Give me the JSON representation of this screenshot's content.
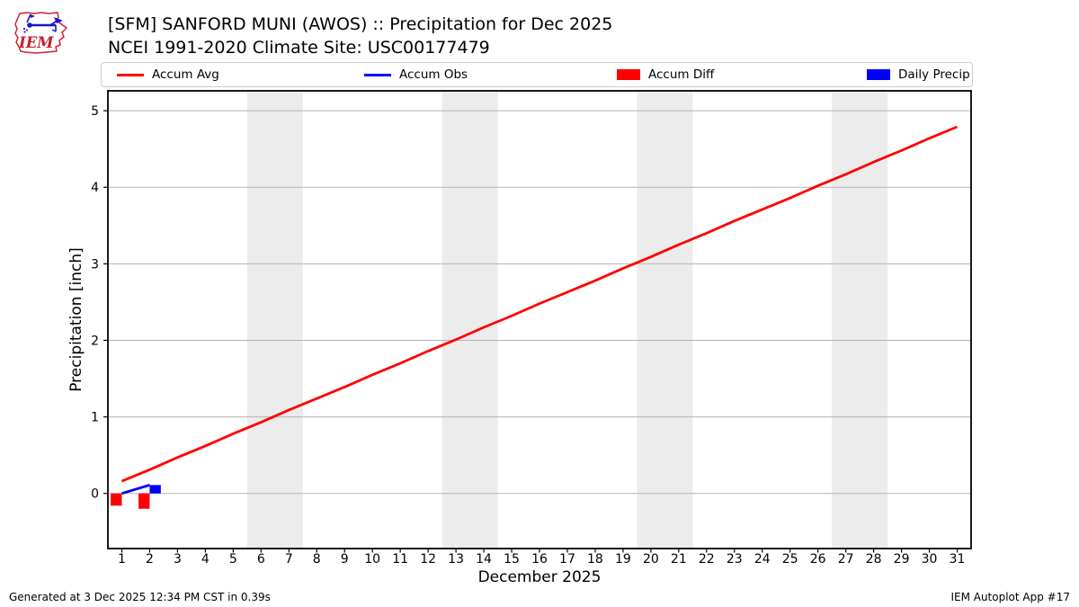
{
  "header": {
    "title": "[SFM] SANFORD MUNI (AWOS) :: Precipitation for Dec 2025",
    "subtitle": "NCEI 1991-2020 Climate Site: USC00177479"
  },
  "logo": {
    "text": "IEM"
  },
  "legend": {
    "items": [
      {
        "label": "Accum Avg",
        "type": "line",
        "color": "#ff0000"
      },
      {
        "label": "Accum Obs",
        "type": "line",
        "color": "#0000ff"
      },
      {
        "label": "Accum Diff",
        "type": "rect",
        "color": "#ff0000"
      },
      {
        "label": "Daily Precip",
        "type": "rect",
        "color": "#0000ff"
      }
    ]
  },
  "footer": {
    "generated": "Generated at 3 Dec 2025 12:34 PM CST in 0.39s",
    "app": "IEM Autoplot App #17"
  },
  "chart_data": {
    "type": "line+bar",
    "title": "[SFM] SANFORD MUNI (AWOS) :: Precipitation for Dec 2025",
    "subtitle": "NCEI 1991-2020 Climate Site: USC00177479",
    "xlabel": "December 2025",
    "ylabel": "Precipitation [inch]",
    "xlim": [
      0.5,
      31.5
    ],
    "ylim": [
      -0.72,
      5.26
    ],
    "xticks": [
      1,
      2,
      3,
      4,
      5,
      6,
      7,
      8,
      9,
      10,
      11,
      12,
      13,
      14,
      15,
      16,
      17,
      18,
      19,
      20,
      21,
      22,
      23,
      24,
      25,
      26,
      27,
      28,
      29,
      30,
      31
    ],
    "yticks": [
      0,
      1,
      2,
      3,
      4,
      5
    ],
    "weekend_bands": [
      [
        5.5,
        7.5
      ],
      [
        12.5,
        14.5
      ],
      [
        19.5,
        21.5
      ],
      [
        26.5,
        28.5
      ]
    ],
    "grid": "horizontal",
    "legend_position": "top",
    "colors": {
      "band": "#ececec",
      "gridline": "#b3b3b3",
      "axis": "#000000"
    },
    "series": [
      {
        "name": "Accum Avg",
        "type": "line",
        "color": "#ff0000",
        "x": [
          1,
          2,
          3,
          4,
          5,
          6,
          7,
          8,
          9,
          10,
          11,
          12,
          13,
          14,
          15,
          16,
          17,
          18,
          19,
          20,
          21,
          22,
          23,
          24,
          25,
          26,
          27,
          28,
          29,
          30,
          31
        ],
        "values": [
          0.16,
          0.31,
          0.47,
          0.62,
          0.78,
          0.93,
          1.09,
          1.24,
          1.39,
          1.55,
          1.7,
          1.86,
          2.01,
          2.17,
          2.32,
          2.48,
          2.63,
          2.78,
          2.94,
          3.09,
          3.25,
          3.4,
          3.56,
          3.71,
          3.86,
          4.02,
          4.17,
          4.33,
          4.48,
          4.64,
          4.79
        ]
      },
      {
        "name": "Accum Obs",
        "type": "line",
        "color": "#0000ff",
        "x": [
          1,
          2
        ],
        "values": [
          0.0,
          0.11
        ]
      },
      {
        "name": "Accum Diff",
        "type": "bar",
        "color": "#ff0000",
        "offset": -0.2,
        "bar_width": 0.4,
        "x": [
          1,
          2
        ],
        "values": [
          -0.16,
          -0.2
        ]
      },
      {
        "name": "Daily Precip",
        "type": "bar",
        "color": "#0000ff",
        "offset": 0.2,
        "bar_width": 0.4,
        "x": [
          1,
          2
        ],
        "values": [
          0.0,
          0.11
        ]
      }
    ]
  }
}
